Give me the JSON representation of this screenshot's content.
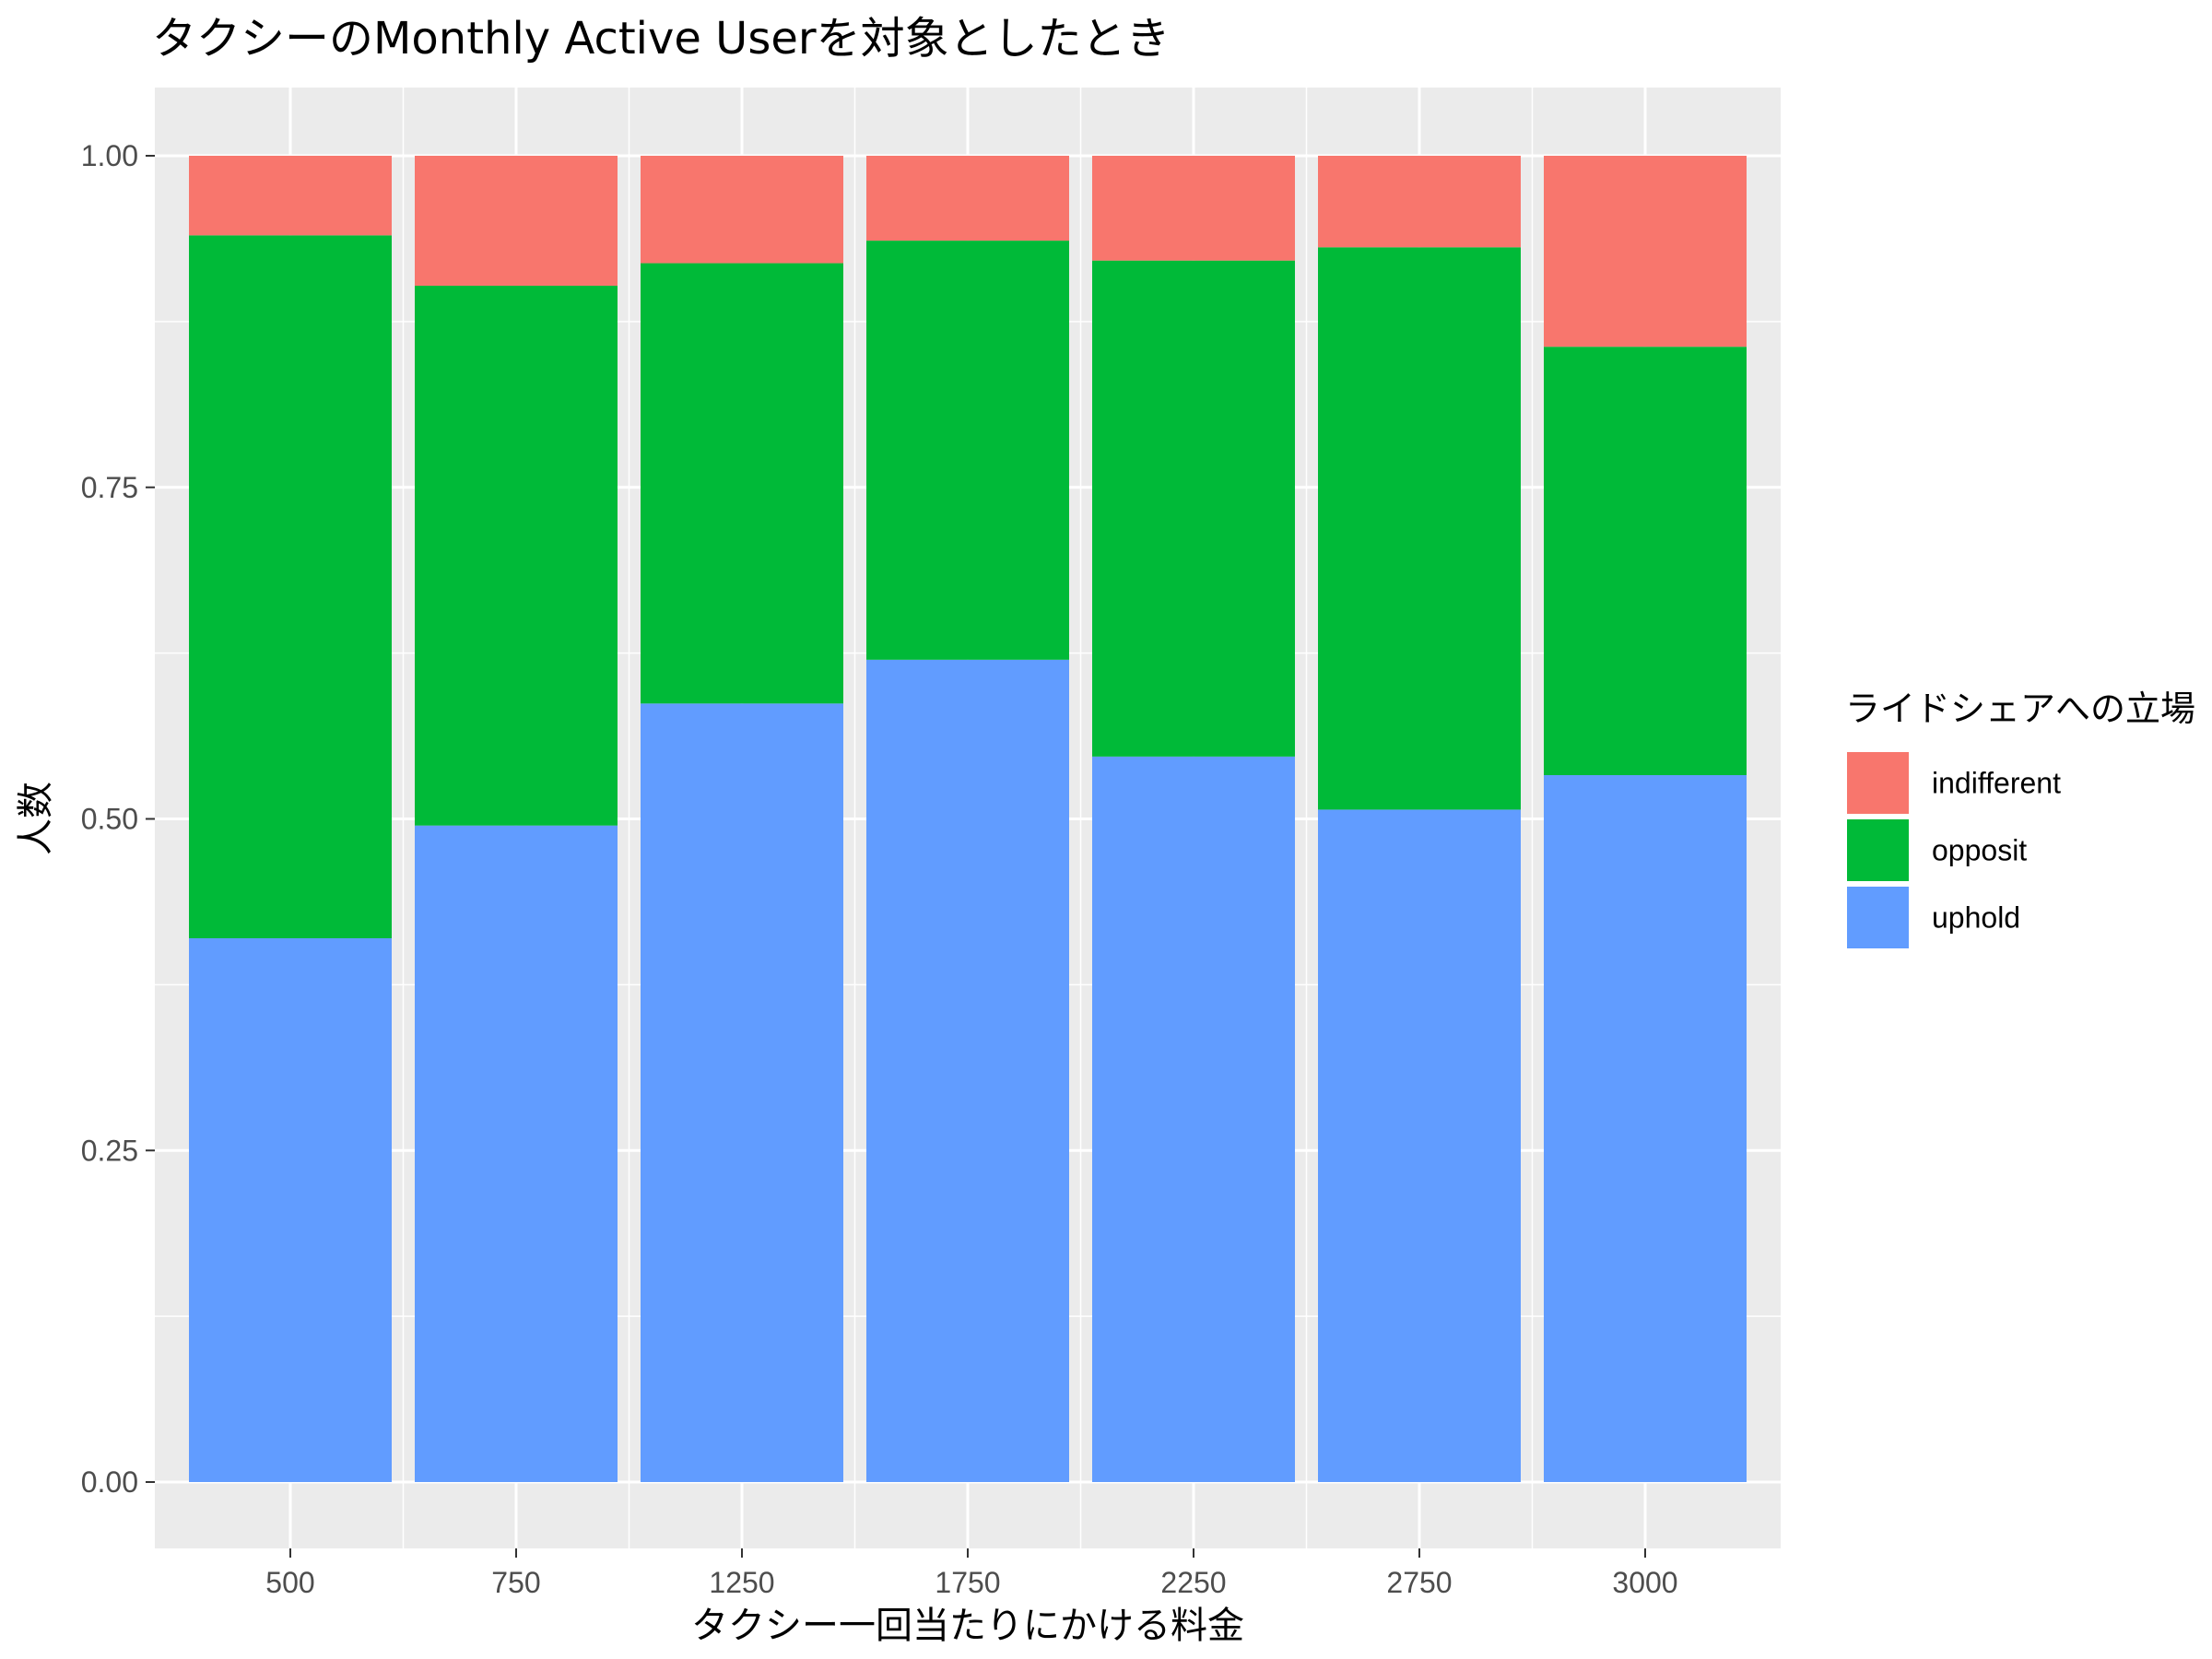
{
  "chart_data": {
    "type": "bar",
    "stacked": true,
    "title": "タクシーのMonthly Active Userを対象としたとき",
    "xlabel": "タクシー一回当たりにかける料金",
    "ylabel": "人数",
    "categories": [
      "500",
      "750",
      "1250",
      "1750",
      "2250",
      "2750",
      "3000"
    ],
    "ylim": [
      0,
      1
    ],
    "yticks": [
      "0.00",
      "0.25",
      "0.50",
      "0.75",
      "1.00"
    ],
    "ytick_values": [
      0,
      0.25,
      0.5,
      0.75,
      1.0
    ],
    "series": [
      {
        "name": "uphold",
        "color": "#619CFF",
        "values": [
          0.41,
          0.495,
          0.587,
          0.62,
          0.547,
          0.507,
          0.533
        ]
      },
      {
        "name": "opposit",
        "color": "#00BA38",
        "values": [
          0.53,
          0.407,
          0.332,
          0.316,
          0.374,
          0.424,
          0.323
        ]
      },
      {
        "name": "indifferent",
        "color": "#F8766D",
        "values": [
          0.06,
          0.098,
          0.081,
          0.064,
          0.079,
          0.069,
          0.144
        ]
      }
    ],
    "legend": {
      "title": "ライドシェアへの立場",
      "position": "right",
      "entries": [
        "indifferent",
        "opposit",
        "uphold"
      ]
    },
    "grid": true,
    "panel_background": "#EBEBEB",
    "gridline_color": "#FFFFFF"
  }
}
